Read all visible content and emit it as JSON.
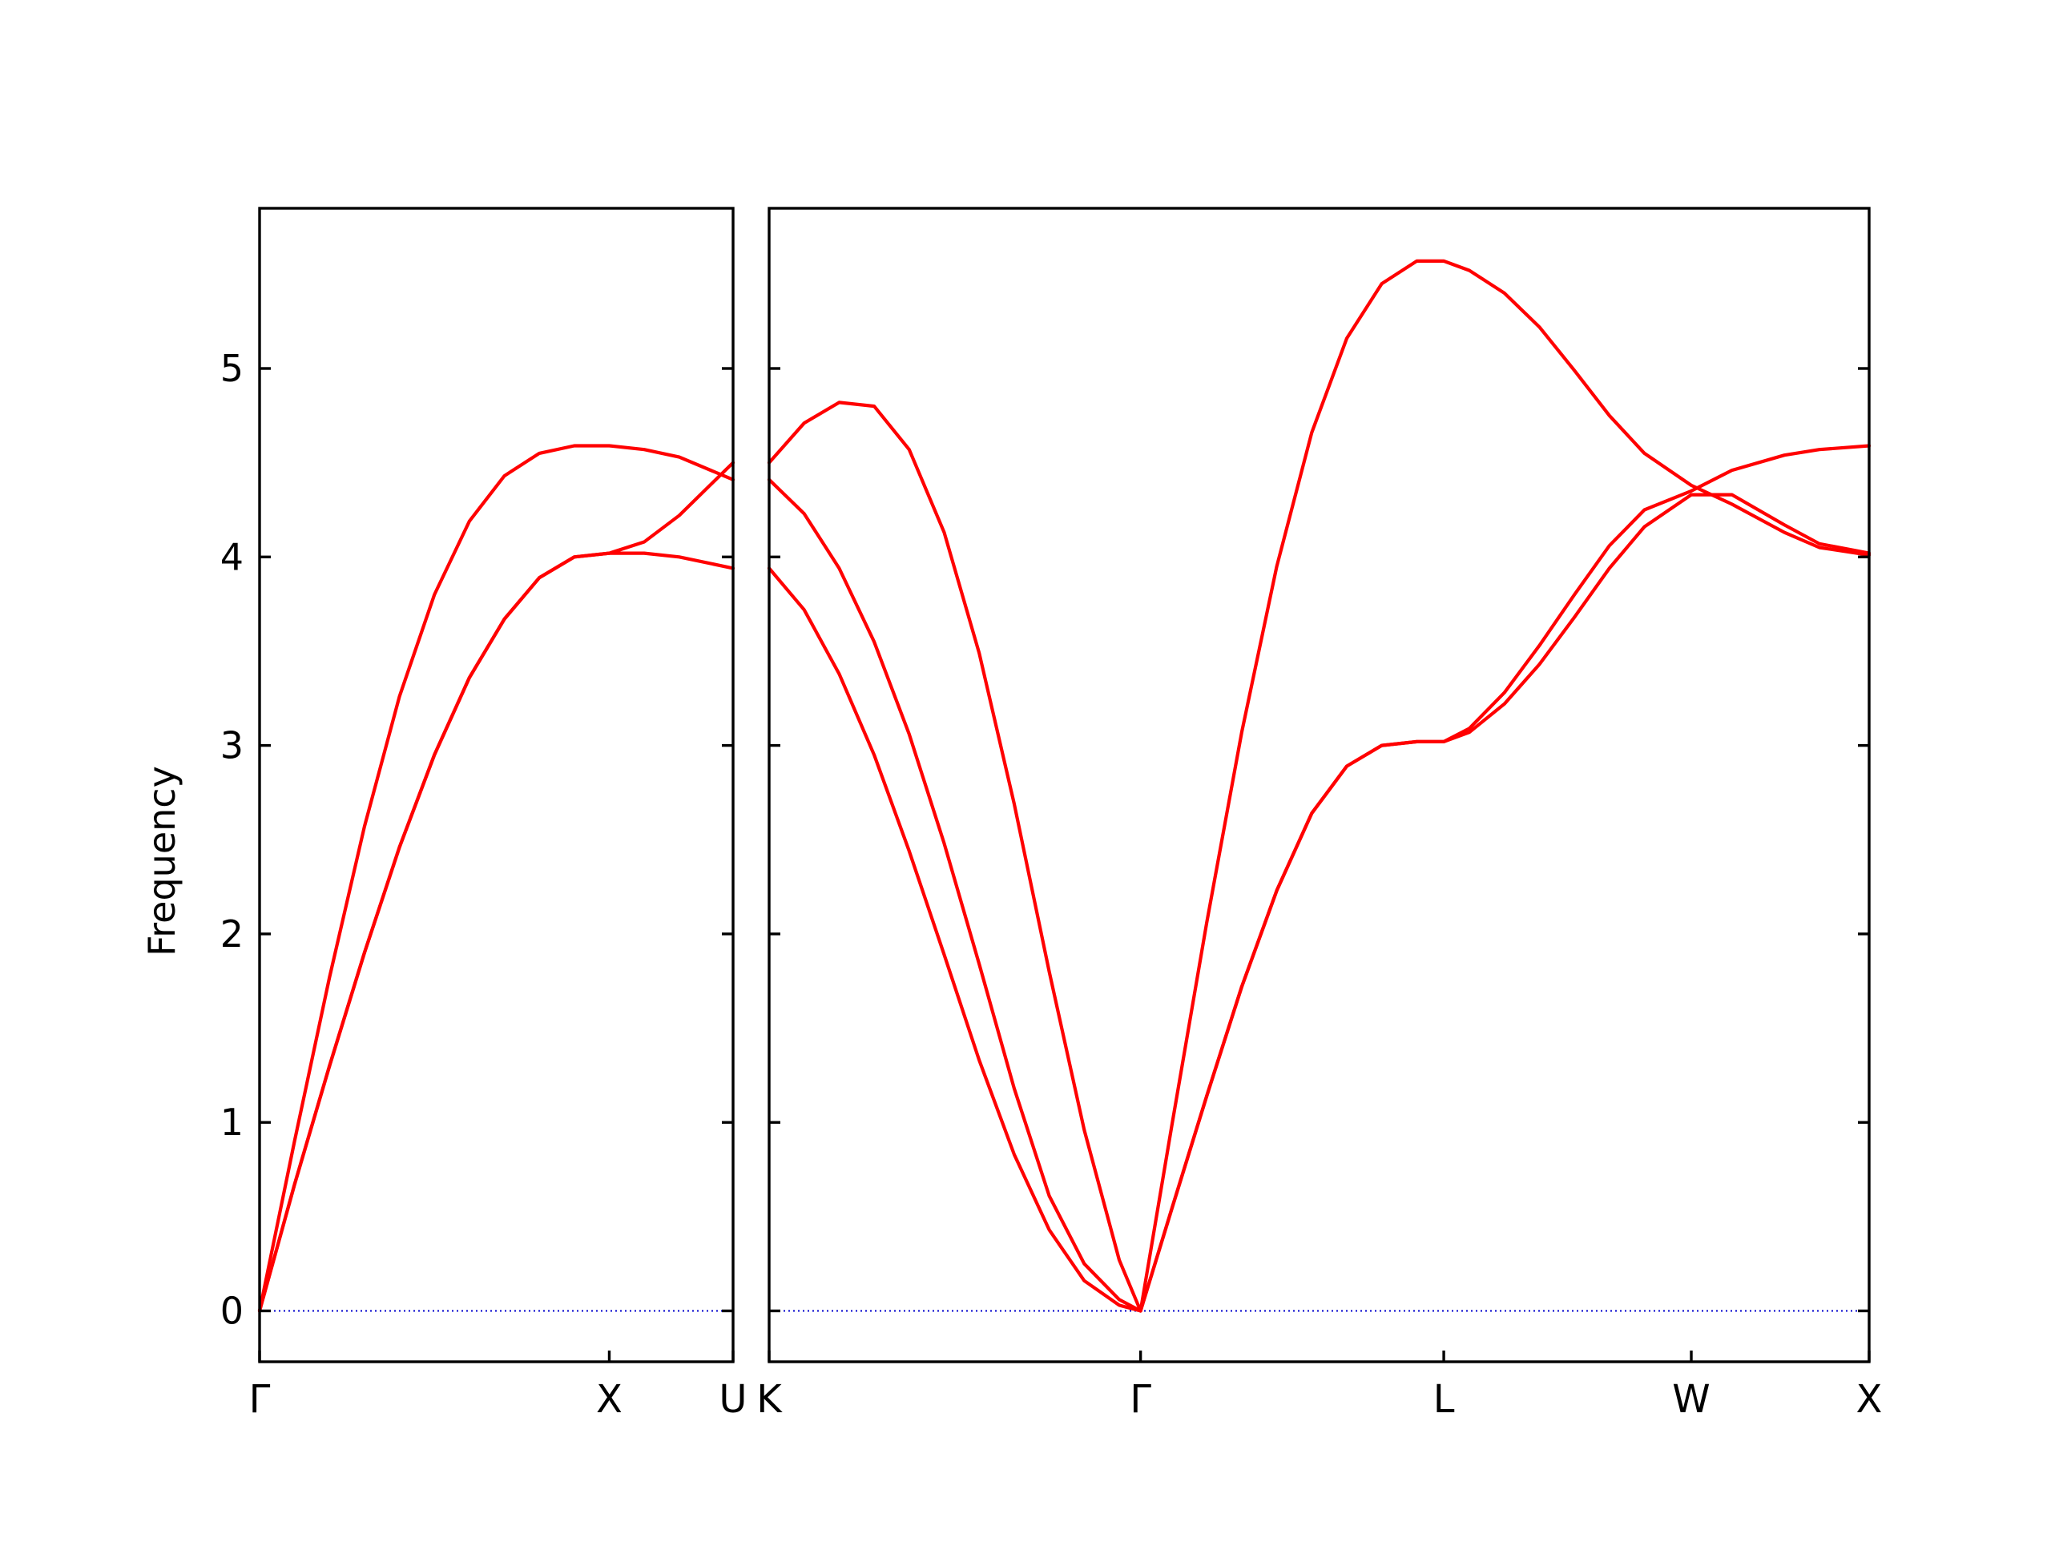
{
  "chart_data": {
    "type": "line",
    "ylabel": "Frequency",
    "ylim": [
      -0.27,
      5.85
    ],
    "yticks": [
      0,
      1,
      2,
      3,
      4,
      5
    ],
    "grid": false,
    "legend": "none",
    "colors": {
      "bands": "#ff0000",
      "zero_line": "#0000cc",
      "axes": "#000000"
    },
    "panels": [
      {
        "xlim": [
          0,
          1.354
        ],
        "high_symmetry_points": [
          {
            "x": 0,
            "label": "Γ"
          },
          {
            "x": 1.0,
            "label": "X"
          },
          {
            "x": 1.354,
            "label": "U"
          }
        ],
        "series": [
          {
            "x": [
              0,
              0.1,
              0.2,
              0.3,
              0.4,
              0.5,
              0.6,
              0.7,
              0.8,
              0.9,
              1.0,
              1.1,
              1.2,
              1.354
            ],
            "y": [
              0,
              0.9,
              1.77,
              2.57,
              3.26,
              3.8,
              4.19,
              4.43,
              4.55,
              4.59,
              4.59,
              4.57,
              4.53,
              4.41
            ]
          },
          {
            "x": [
              0,
              0.1,
              0.2,
              0.3,
              0.4,
              0.5,
              0.6,
              0.7,
              0.8,
              0.9,
              1.0,
              1.1,
              1.2,
              1.354
            ],
            "y": [
              0,
              0.67,
              1.3,
              1.9,
              2.46,
              2.95,
              3.36,
              3.67,
              3.89,
              4.0,
              4.02,
              4.08,
              4.22,
              4.5
            ]
          },
          {
            "x": [
              0,
              0.1,
              0.2,
              0.3,
              0.4,
              0.5,
              0.6,
              0.7,
              0.8,
              0.9,
              1.0,
              1.1,
              1.2,
              1.354
            ],
            "y": [
              0,
              0.67,
              1.3,
              1.9,
              2.46,
              2.95,
              3.36,
              3.67,
              3.89,
              4.0,
              4.02,
              4.02,
              4.0,
              3.94
            ]
          }
        ]
      },
      {
        "xlim": [
          0,
          3.142
        ],
        "high_symmetry_points": [
          {
            "x": 0,
            "label": "K"
          },
          {
            "x": 1.061,
            "label": "Γ"
          },
          {
            "x": 1.927,
            "label": "L"
          },
          {
            "x": 2.634,
            "label": "W"
          },
          {
            "x": 3.142,
            "label": "X"
          }
        ],
        "series": [
          {
            "x": [
              0,
              0.1,
              0.2,
              0.3,
              0.4,
              0.5,
              0.6,
              0.7,
              0.8,
              0.9,
              1.0,
              1.061,
              1.15,
              1.25,
              1.35,
              1.45,
              1.55,
              1.65,
              1.75,
              1.85,
              1.927,
              2.0,
              2.1,
              2.2,
              2.3,
              2.4,
              2.5,
              2.634,
              2.75,
              2.9,
              3.0,
              3.142
            ],
            "y": [
              4.5,
              4.71,
              4.82,
              4.8,
              4.57,
              4.13,
              3.49,
              2.69,
              1.8,
              0.96,
              0.27,
              0,
              0.98,
              2.06,
              3.07,
              3.95,
              4.66,
              5.16,
              5.45,
              5.57,
              5.57,
              5.52,
              5.4,
              5.22,
              4.99,
              4.75,
              4.55,
              4.38,
              4.28,
              4.13,
              4.05,
              4.01
            ]
          },
          {
            "x": [
              0,
              0.1,
              0.2,
              0.3,
              0.4,
              0.5,
              0.6,
              0.7,
              0.8,
              0.9,
              1.0,
              1.061,
              1.15,
              1.25,
              1.35,
              1.45,
              1.55,
              1.65,
              1.75,
              1.85,
              1.927,
              2.0,
              2.1,
              2.2,
              2.3,
              2.4,
              2.5,
              2.634,
              2.75,
              2.9,
              3.0,
              3.142
            ],
            "y": [
              4.41,
              4.23,
              3.94,
              3.55,
              3.06,
              2.48,
              1.84,
              1.18,
              0.61,
              0.25,
              0.06,
              0,
              0.54,
              1.14,
              1.72,
              2.23,
              2.64,
              2.89,
              3.0,
              3.02,
              3.02,
              3.09,
              3.28,
              3.53,
              3.8,
              4.06,
              4.25,
              4.35,
              4.46,
              4.54,
              4.57,
              4.59
            ]
          },
          {
            "x": [
              0,
              0.1,
              0.2,
              0.3,
              0.4,
              0.5,
              0.6,
              0.7,
              0.8,
              0.9,
              1.0,
              1.061,
              1.15,
              1.25,
              1.35,
              1.45,
              1.55,
              1.65,
              1.75,
              1.85,
              1.927,
              2.0,
              2.1,
              2.2,
              2.3,
              2.4,
              2.5,
              2.634,
              2.75,
              2.9,
              3.0,
              3.142
            ],
            "y": [
              3.94,
              3.72,
              3.38,
              2.95,
              2.44,
              1.89,
              1.33,
              0.83,
              0.43,
              0.16,
              0.03,
              0,
              0.54,
              1.14,
              1.72,
              2.23,
              2.64,
              2.89,
              3.0,
              3.02,
              3.02,
              3.07,
              3.22,
              3.43,
              3.68,
              3.94,
              4.16,
              4.33,
              4.33,
              4.17,
              4.07,
              4.02
            ]
          }
        ]
      }
    ]
  }
}
